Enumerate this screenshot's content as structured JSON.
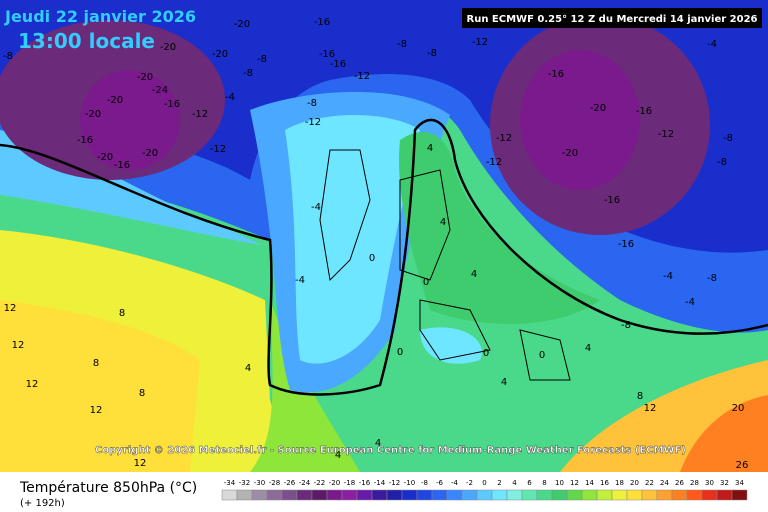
{
  "header": {
    "date": "Jeudi 22 janvier 2026",
    "time": "13:00 locale",
    "run": "Run ECMWF 0.25° 12 Z du Mercredi 14 janvier 2026"
  },
  "map": {
    "contour_labels": [
      -20,
      -16,
      -20,
      -20,
      -20,
      -20,
      -24,
      -16,
      -20,
      -16,
      -20,
      -16,
      -20,
      -12,
      -12,
      -8,
      -4,
      -8,
      -16,
      -16,
      -12,
      -8,
      -8,
      -12,
      -8,
      -12,
      -4,
      -16,
      -20,
      -16,
      -12,
      -20,
      -16,
      -16,
      -12,
      -12,
      -8,
      -8,
      -4,
      -8,
      -4,
      -8,
      -4,
      4,
      4,
      4,
      0,
      0,
      0,
      0,
      0,
      4,
      4,
      8,
      12,
      20,
      26,
      -8,
      12,
      12,
      8,
      8,
      12,
      8,
      12,
      12,
      4,
      4,
      4,
      -4
    ]
  },
  "footer": {
    "copyright": "Copyright © 2026 Meteociel.fr - Source European Centre for Medium-Range Weather Forecasts (ECMWF)",
    "title": "Température 850hPa (°C)",
    "lead": "(+ 192h)"
  },
  "scale": {
    "ticks": [
      -34,
      -32,
      -30,
      -28,
      -26,
      -24,
      -22,
      -20,
      -18,
      -16,
      -14,
      -12,
      -10,
      -8,
      -6,
      -4,
      -2,
      0,
      2,
      4,
      6,
      8,
      10,
      12,
      14,
      16,
      18,
      20,
      22,
      24,
      26,
      28,
      30,
      32,
      34
    ],
    "colors": [
      "#d9d9d9",
      "#b3b3b3",
      "#9c8ca6",
      "#8c6b99",
      "#7a4f8c",
      "#6b2a7a",
      "#5c1a66",
      "#7a1a8c",
      "#8a1fa3",
      "#6a1aa8",
      "#3b1a9e",
      "#1f1fa8",
      "#1a2ecc",
      "#1f47e0",
      "#2a66f0",
      "#3a86ff",
      "#4aa8ff",
      "#5ccaff",
      "#6ee6ff",
      "#7ff0e0",
      "#5ee8b0",
      "#4ad98a",
      "#3fcc6e",
      "#5fd94a",
      "#8fe63a",
      "#c2f03a",
      "#eef03a",
      "#ffe03a",
      "#ffc23a",
      "#ffa030",
      "#ff8020",
      "#ff5a1a",
      "#e8301a",
      "#c01a1a",
      "#801010"
    ]
  }
}
